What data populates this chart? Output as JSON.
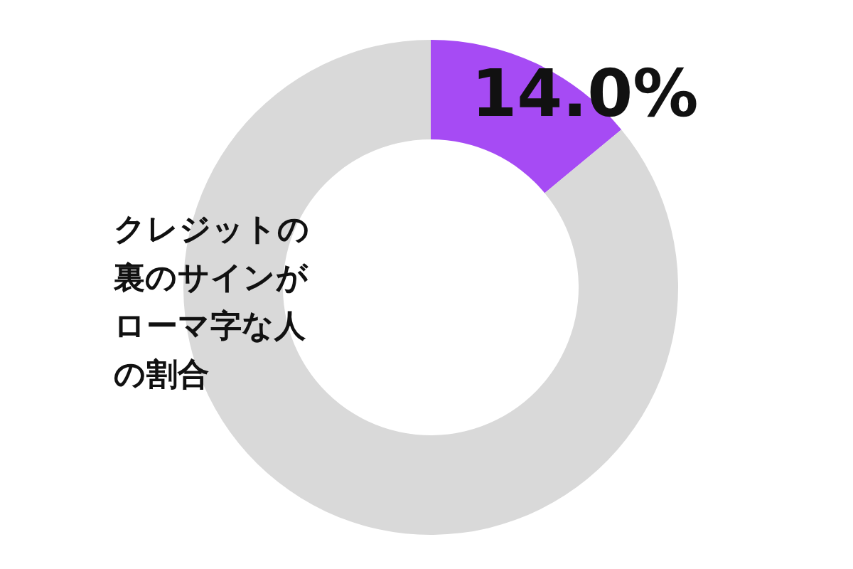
{
  "chart_data": {
    "type": "donut",
    "title": "クレジットの裏のサインがローマ字な人の割合",
    "categories": [
      null,
      null
    ],
    "values": [
      14.0,
      86.0
    ],
    "colors": [
      "#a64bf4",
      "#d9d9d9"
    ],
    "value_labels": [
      "14.0%",
      null
    ]
  }
}
